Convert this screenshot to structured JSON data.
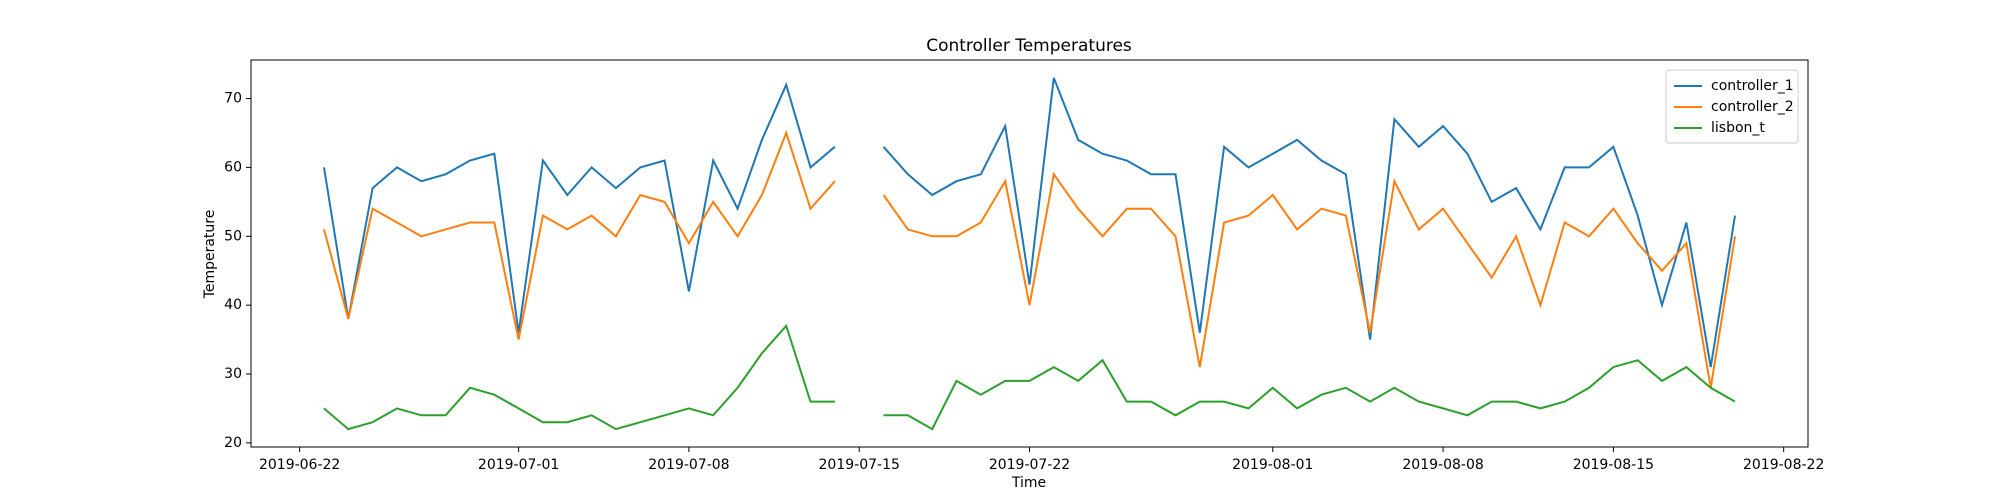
{
  "chart_data": {
    "type": "line",
    "title": "Controller Temperatures",
    "xlabel": "Time",
    "ylabel": "Temperature",
    "x": [
      "2019-06-23",
      "2019-06-24",
      "2019-06-25",
      "2019-06-26",
      "2019-06-27",
      "2019-06-28",
      "2019-06-29",
      "2019-06-30",
      "2019-07-01",
      "2019-07-02",
      "2019-07-03",
      "2019-07-04",
      "2019-07-05",
      "2019-07-06",
      "2019-07-07",
      "2019-07-08",
      "2019-07-09",
      "2019-07-10",
      "2019-07-11",
      "2019-07-12",
      "2019-07-13",
      "2019-07-14",
      "2019-07-15",
      "2019-07-16",
      "2019-07-17",
      "2019-07-18",
      "2019-07-19",
      "2019-07-20",
      "2019-07-21",
      "2019-07-22",
      "2019-07-23",
      "2019-07-24",
      "2019-07-25",
      "2019-07-26",
      "2019-07-27",
      "2019-07-28",
      "2019-07-29",
      "2019-07-30",
      "2019-07-31",
      "2019-08-01",
      "2019-08-02",
      "2019-08-03",
      "2019-08-04",
      "2019-08-05",
      "2019-08-06",
      "2019-08-07",
      "2019-08-08",
      "2019-08-09",
      "2019-08-10",
      "2019-08-11",
      "2019-08-12",
      "2019-08-13",
      "2019-08-14",
      "2019-08-15",
      "2019-08-16",
      "2019-08-17",
      "2019-08-18",
      "2019-08-19",
      "2019-08-20"
    ],
    "series": [
      {
        "name": "controller_1",
        "color": "#1f77b4",
        "values": [
          60,
          38,
          57,
          60,
          58,
          59,
          61,
          62,
          36,
          61,
          56,
          60,
          57,
          60,
          61,
          42,
          61,
          54,
          64,
          72,
          60,
          63,
          null,
          63,
          59,
          56,
          58,
          59,
          66,
          43,
          73,
          64,
          62,
          61,
          59,
          59,
          36,
          63,
          60,
          62,
          64,
          61,
          59,
          35,
          67,
          63,
          66,
          62,
          55,
          57,
          51,
          60,
          60,
          63,
          53,
          40,
          52,
          31,
          53
        ]
      },
      {
        "name": "controller_2",
        "color": "#ff7f0e",
        "values": [
          51,
          38,
          54,
          52,
          50,
          51,
          52,
          52,
          35,
          53,
          51,
          53,
          50,
          56,
          55,
          49,
          55,
          50,
          56,
          65,
          54,
          58,
          null,
          56,
          51,
          50,
          50,
          52,
          58,
          40,
          59,
          54,
          50,
          54,
          54,
          50,
          31,
          52,
          53,
          56,
          51,
          54,
          53,
          36,
          58,
          51,
          54,
          49,
          44,
          50,
          40,
          52,
          50,
          54,
          49,
          45,
          49,
          28,
          50
        ]
      },
      {
        "name": "lisbon_t",
        "color": "#2ca02c",
        "values": [
          25,
          22,
          23,
          25,
          24,
          24,
          28,
          27,
          25,
          23,
          23,
          24,
          22,
          23,
          24,
          25,
          24,
          28,
          33,
          37,
          26,
          26,
          null,
          24,
          24,
          22,
          29,
          27,
          29,
          29,
          31,
          29,
          32,
          26,
          26,
          24,
          26,
          26,
          25,
          28,
          25,
          27,
          28,
          26,
          28,
          26,
          25,
          24,
          26,
          26,
          25,
          26,
          28,
          31,
          32,
          29,
          31,
          28,
          26
        ]
      }
    ],
    "xlim": [
      "2019-06-20",
      "2019-08-23"
    ],
    "xticks": [
      "2019-06-22",
      "2019-07-01",
      "2019-07-08",
      "2019-07-15",
      "2019-07-22",
      "2019-08-01",
      "2019-08-08",
      "2019-08-15",
      "2019-08-22"
    ],
    "ylim": [
      19.4,
      75.6
    ],
    "yticks": [
      20,
      30,
      40,
      50,
      60,
      70
    ],
    "legend": "upper right",
    "grid": false
  }
}
